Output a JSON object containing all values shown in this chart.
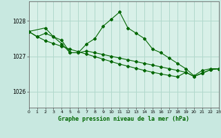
{
  "bg_color": "#c8e8e0",
  "plot_bg_color": "#d8f0e8",
  "grid_color": "#b0d8cc",
  "line_color": "#006600",
  "title": "Graphe pression niveau de la mer (hPa)",
  "ylim": [
    1025.55,
    1028.55
  ],
  "yticks": [
    1026,
    1027,
    1028
  ],
  "xlim": [
    0,
    23
  ],
  "xticks": [
    0,
    1,
    2,
    3,
    4,
    5,
    6,
    7,
    8,
    9,
    10,
    11,
    12,
    13,
    14,
    15,
    16,
    17,
    18,
    19,
    20,
    21,
    22,
    23
  ],
  "series1_x": [
    0,
    1,
    2,
    3,
    4,
    5,
    6,
    7,
    8,
    9,
    10,
    11,
    12,
    13,
    14,
    15,
    16,
    17,
    18,
    19,
    20,
    21,
    22,
    23
  ],
  "series1_y": [
    1027.7,
    1027.55,
    1027.65,
    1027.55,
    1027.45,
    1027.1,
    1027.1,
    1027.35,
    1027.5,
    1027.85,
    1028.05,
    1028.25,
    1027.8,
    1027.65,
    1027.5,
    1027.2,
    1027.1,
    1026.95,
    1026.8,
    1026.65,
    1026.45,
    1026.6,
    1026.65,
    1026.65
  ],
  "series2_x": [
    0,
    1,
    2,
    3,
    4,
    5,
    6,
    7,
    8,
    9,
    10,
    11,
    12,
    13,
    14,
    15,
    16,
    17,
    18,
    19,
    20,
    21,
    22,
    23
  ],
  "series2_y": [
    1027.7,
    1027.56,
    1027.44,
    1027.36,
    1027.28,
    1027.2,
    1027.13,
    1027.06,
    1026.99,
    1026.92,
    1026.85,
    1026.78,
    1026.72,
    1026.66,
    1026.6,
    1026.55,
    1026.5,
    1026.46,
    1026.42,
    1026.55,
    1026.43,
    1026.53,
    1026.62,
    1026.65
  ],
  "series3_x": [
    0,
    2,
    3,
    4,
    5,
    6,
    7,
    8,
    9,
    10,
    11,
    12,
    13,
    14,
    15,
    16,
    17,
    18,
    19,
    20,
    21,
    22,
    23
  ],
  "series3_y": [
    1027.7,
    1027.8,
    1027.55,
    1027.35,
    1027.1,
    1027.1,
    1027.15,
    1027.1,
    1027.05,
    1027.0,
    1026.95,
    1026.9,
    1026.85,
    1026.8,
    1026.75,
    1026.7,
    1026.65,
    1026.6,
    1026.55,
    1026.43,
    1026.52,
    1026.62,
    1026.65
  ]
}
